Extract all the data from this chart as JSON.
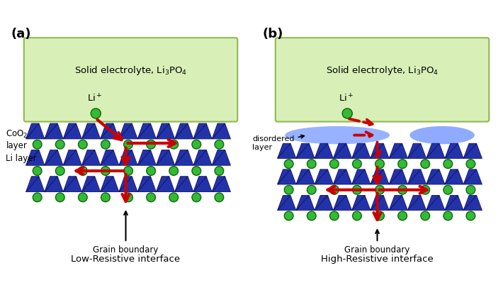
{
  "fig_width": 7.1,
  "fig_height": 4.1,
  "bg_color": "#ffffff",
  "electrolyte_color": "#d8f0b8",
  "electrolyte_border": "#90b850",
  "blue_color": "#2233aa",
  "blue_edge": "#111166",
  "green_fill": "#33bb33",
  "green_edge": "#116611",
  "arrow_color": "#cc0000",
  "blob_color": "#3366ff",
  "label_a": "(a)",
  "label_b": "(b)",
  "title_a": "Low-Resistive interface",
  "title_b": "High-Resistive interface"
}
